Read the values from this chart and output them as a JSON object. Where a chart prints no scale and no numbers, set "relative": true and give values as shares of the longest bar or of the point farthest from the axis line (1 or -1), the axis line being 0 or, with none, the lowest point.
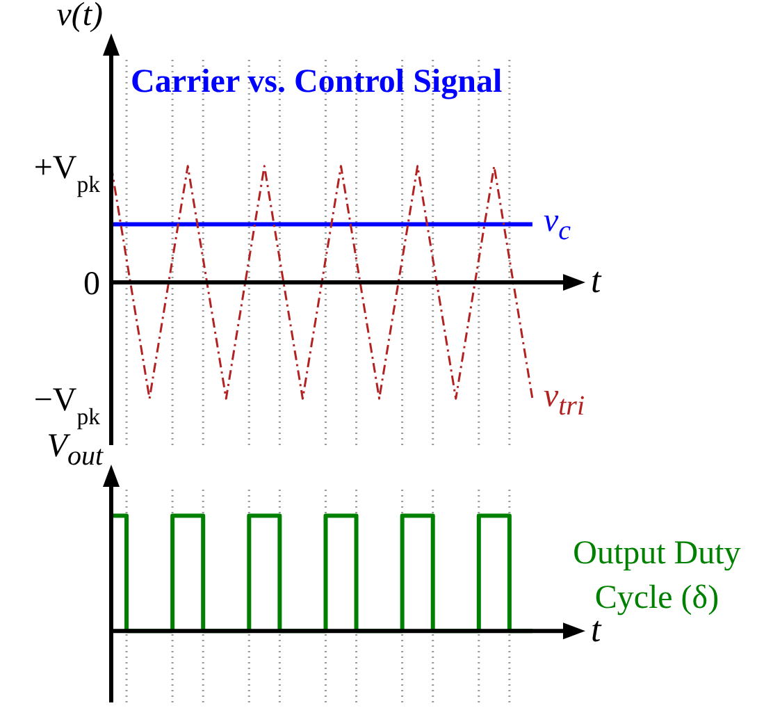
{
  "chart_data": [
    {
      "type": "line",
      "title": "Carrier vs. Control Signal",
      "ylabel": "v(t)",
      "xlabel": "t",
      "relative": true,
      "grid": "x",
      "annotations": [
        "+V$_{pk}$",
        "0",
        "−V$_{pk}$"
      ],
      "categories": [
        null,
        null,
        null,
        null,
        null,
        null,
        null,
        null,
        null,
        null,
        null,
        null,
        null,
        null,
        null,
        null,
        null,
        null,
        null,
        null,
        null,
        null,
        null,
        null,
        null,
        null,
        null,
        null,
        null,
        null,
        null,
        null,
        null,
        null,
        null,
        null,
        null,
        null,
        null,
        null,
        null,
        null,
        null,
        null,
        null,
        null,
        null,
        null,
        null,
        null,
        null,
        null,
        null,
        null,
        null,
        null
      ],
      "series": [
        {
          "name": "v$_{c}$",
          "color": "#0000ff",
          "line_style": "solid",
          "values": [
            0.5,
            0.5,
            0.5,
            0.5,
            0.5,
            0.5,
            0.5,
            0.5,
            0.5,
            0.5,
            0.5,
            0.5,
            0.5,
            0.5,
            0.5,
            0.5,
            0.5,
            0.5,
            0.5,
            0.5,
            0.5,
            0.5,
            0.5,
            0.5,
            0.5,
            0.5,
            0.5,
            0.5,
            0.5,
            0.5,
            0.5,
            0.5,
            0.5,
            0.5,
            0.5,
            0.5,
            0.5,
            0.5,
            0.5,
            0.5,
            0.5,
            0.5,
            0.5,
            0.5,
            0.5,
            0.5,
            0.5,
            0.5,
            0.5,
            0.5,
            0.5,
            0.5,
            0.5,
            0.5,
            0.5,
            0.5
          ]
        },
        {
          "name": "v$_{tri}$",
          "color": "#b22222",
          "line_style": "dashed",
          "values": [
            1,
            0.6,
            0.2,
            -0.2,
            -0.6,
            -1,
            -0.6,
            -0.2,
            0.2,
            0.6,
            1,
            0.6,
            0.2,
            -0.2,
            -0.6,
            -1,
            -0.6,
            -0.2,
            0.2,
            0.6,
            1,
            0.6,
            0.2,
            -0.2,
            -0.6,
            -1,
            -0.6,
            -0.2,
            0.2,
            0.6,
            1,
            0.6,
            0.2,
            -0.2,
            -0.6,
            -1,
            -0.6,
            -0.2,
            0.2,
            0.6,
            1,
            0.6,
            0.2,
            -0.2,
            -0.6,
            -1,
            -0.6,
            -0.2,
            0.2,
            0.6,
            1,
            0.6,
            0.2,
            -0.2,
            -0.6,
            -1
          ]
        }
      ]
    },
    {
      "type": "step",
      "ylabel": "V$_{out}$",
      "xlabel": "t",
      "relative": true,
      "grid": "x",
      "categories": [
        null,
        null,
        null,
        null,
        null,
        null,
        null,
        null,
        null,
        null,
        null,
        null,
        null,
        null,
        null,
        null,
        null,
        null,
        null,
        null,
        null,
        null,
        null,
        null,
        null,
        null,
        null,
        null,
        null,
        null,
        null,
        null,
        null,
        null,
        null,
        null,
        null,
        null,
        null,
        null,
        null,
        null,
        null,
        null,
        null,
        null,
        null,
        null,
        null,
        null,
        null,
        null,
        null,
        null,
        null,
        null
      ],
      "series": [
        {
          "name": "Output Duty Cycle (δ)",
          "color": "#008000",
          "line_style": "solid",
          "values": [
            1,
            1,
            0,
            0,
            0,
            0,
            0,
            0,
            1,
            1,
            1,
            1,
            0,
            0,
            0,
            0,
            0,
            0,
            1,
            1,
            1,
            1,
            0,
            0,
            0,
            0,
            0,
            0,
            1,
            1,
            1,
            1,
            0,
            0,
            0,
            0,
            0,
            0,
            1,
            1,
            1,
            1,
            0,
            0,
            0,
            0,
            0,
            0,
            1,
            1,
            1,
            1,
            0,
            0,
            0,
            0
          ]
        }
      ]
    }
  ]
}
